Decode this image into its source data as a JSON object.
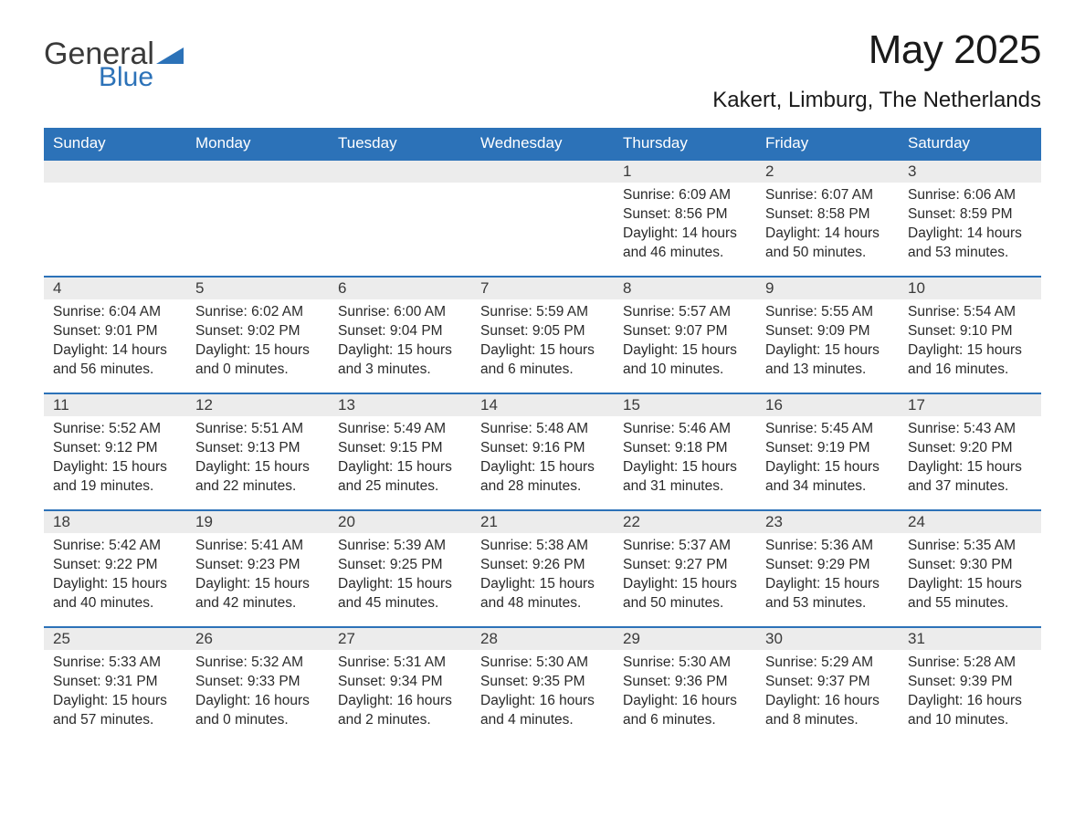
{
  "logo": {
    "general": "General",
    "blue": "Blue",
    "tri_color": "#2c72b8"
  },
  "title": "May 2025",
  "location": "Kakert, Limburg, The Netherlands",
  "colors": {
    "header_bg": "#2c72b8",
    "header_text": "#ffffff",
    "band_bg": "#ececec",
    "band_border": "#2c72b8",
    "text": "#2a2a2a",
    "background": "#ffffff"
  },
  "typography": {
    "title_fontsize": 44,
    "location_fontsize": 24,
    "dow_fontsize": 17,
    "daynum_fontsize": 17,
    "body_fontsize": 15.5
  },
  "dow": [
    "Sunday",
    "Monday",
    "Tuesday",
    "Wednesday",
    "Thursday",
    "Friday",
    "Saturday"
  ],
  "weeks": [
    [
      {
        "empty": true
      },
      {
        "empty": true
      },
      {
        "empty": true
      },
      {
        "empty": true
      },
      {
        "n": "1",
        "sunrise": "Sunrise: 6:09 AM",
        "sunset": "Sunset: 8:56 PM",
        "day1": "Daylight: 14 hours",
        "day2": "and 46 minutes."
      },
      {
        "n": "2",
        "sunrise": "Sunrise: 6:07 AM",
        "sunset": "Sunset: 8:58 PM",
        "day1": "Daylight: 14 hours",
        "day2": "and 50 minutes."
      },
      {
        "n": "3",
        "sunrise": "Sunrise: 6:06 AM",
        "sunset": "Sunset: 8:59 PM",
        "day1": "Daylight: 14 hours",
        "day2": "and 53 minutes."
      }
    ],
    [
      {
        "n": "4",
        "sunrise": "Sunrise: 6:04 AM",
        "sunset": "Sunset: 9:01 PM",
        "day1": "Daylight: 14 hours",
        "day2": "and 56 minutes."
      },
      {
        "n": "5",
        "sunrise": "Sunrise: 6:02 AM",
        "sunset": "Sunset: 9:02 PM",
        "day1": "Daylight: 15 hours",
        "day2": "and 0 minutes."
      },
      {
        "n": "6",
        "sunrise": "Sunrise: 6:00 AM",
        "sunset": "Sunset: 9:04 PM",
        "day1": "Daylight: 15 hours",
        "day2": "and 3 minutes."
      },
      {
        "n": "7",
        "sunrise": "Sunrise: 5:59 AM",
        "sunset": "Sunset: 9:05 PM",
        "day1": "Daylight: 15 hours",
        "day2": "and 6 minutes."
      },
      {
        "n": "8",
        "sunrise": "Sunrise: 5:57 AM",
        "sunset": "Sunset: 9:07 PM",
        "day1": "Daylight: 15 hours",
        "day2": "and 10 minutes."
      },
      {
        "n": "9",
        "sunrise": "Sunrise: 5:55 AM",
        "sunset": "Sunset: 9:09 PM",
        "day1": "Daylight: 15 hours",
        "day2": "and 13 minutes."
      },
      {
        "n": "10",
        "sunrise": "Sunrise: 5:54 AM",
        "sunset": "Sunset: 9:10 PM",
        "day1": "Daylight: 15 hours",
        "day2": "and 16 minutes."
      }
    ],
    [
      {
        "n": "11",
        "sunrise": "Sunrise: 5:52 AM",
        "sunset": "Sunset: 9:12 PM",
        "day1": "Daylight: 15 hours",
        "day2": "and 19 minutes."
      },
      {
        "n": "12",
        "sunrise": "Sunrise: 5:51 AM",
        "sunset": "Sunset: 9:13 PM",
        "day1": "Daylight: 15 hours",
        "day2": "and 22 minutes."
      },
      {
        "n": "13",
        "sunrise": "Sunrise: 5:49 AM",
        "sunset": "Sunset: 9:15 PM",
        "day1": "Daylight: 15 hours",
        "day2": "and 25 minutes."
      },
      {
        "n": "14",
        "sunrise": "Sunrise: 5:48 AM",
        "sunset": "Sunset: 9:16 PM",
        "day1": "Daylight: 15 hours",
        "day2": "and 28 minutes."
      },
      {
        "n": "15",
        "sunrise": "Sunrise: 5:46 AM",
        "sunset": "Sunset: 9:18 PM",
        "day1": "Daylight: 15 hours",
        "day2": "and 31 minutes."
      },
      {
        "n": "16",
        "sunrise": "Sunrise: 5:45 AM",
        "sunset": "Sunset: 9:19 PM",
        "day1": "Daylight: 15 hours",
        "day2": "and 34 minutes."
      },
      {
        "n": "17",
        "sunrise": "Sunrise: 5:43 AM",
        "sunset": "Sunset: 9:20 PM",
        "day1": "Daylight: 15 hours",
        "day2": "and 37 minutes."
      }
    ],
    [
      {
        "n": "18",
        "sunrise": "Sunrise: 5:42 AM",
        "sunset": "Sunset: 9:22 PM",
        "day1": "Daylight: 15 hours",
        "day2": "and 40 minutes."
      },
      {
        "n": "19",
        "sunrise": "Sunrise: 5:41 AM",
        "sunset": "Sunset: 9:23 PM",
        "day1": "Daylight: 15 hours",
        "day2": "and 42 minutes."
      },
      {
        "n": "20",
        "sunrise": "Sunrise: 5:39 AM",
        "sunset": "Sunset: 9:25 PM",
        "day1": "Daylight: 15 hours",
        "day2": "and 45 minutes."
      },
      {
        "n": "21",
        "sunrise": "Sunrise: 5:38 AM",
        "sunset": "Sunset: 9:26 PM",
        "day1": "Daylight: 15 hours",
        "day2": "and 48 minutes."
      },
      {
        "n": "22",
        "sunrise": "Sunrise: 5:37 AM",
        "sunset": "Sunset: 9:27 PM",
        "day1": "Daylight: 15 hours",
        "day2": "and 50 minutes."
      },
      {
        "n": "23",
        "sunrise": "Sunrise: 5:36 AM",
        "sunset": "Sunset: 9:29 PM",
        "day1": "Daylight: 15 hours",
        "day2": "and 53 minutes."
      },
      {
        "n": "24",
        "sunrise": "Sunrise: 5:35 AM",
        "sunset": "Sunset: 9:30 PM",
        "day1": "Daylight: 15 hours",
        "day2": "and 55 minutes."
      }
    ],
    [
      {
        "n": "25",
        "sunrise": "Sunrise: 5:33 AM",
        "sunset": "Sunset: 9:31 PM",
        "day1": "Daylight: 15 hours",
        "day2": "and 57 minutes."
      },
      {
        "n": "26",
        "sunrise": "Sunrise: 5:32 AM",
        "sunset": "Sunset: 9:33 PM",
        "day1": "Daylight: 16 hours",
        "day2": "and 0 minutes."
      },
      {
        "n": "27",
        "sunrise": "Sunrise: 5:31 AM",
        "sunset": "Sunset: 9:34 PM",
        "day1": "Daylight: 16 hours",
        "day2": "and 2 minutes."
      },
      {
        "n": "28",
        "sunrise": "Sunrise: 5:30 AM",
        "sunset": "Sunset: 9:35 PM",
        "day1": "Daylight: 16 hours",
        "day2": "and 4 minutes."
      },
      {
        "n": "29",
        "sunrise": "Sunrise: 5:30 AM",
        "sunset": "Sunset: 9:36 PM",
        "day1": "Daylight: 16 hours",
        "day2": "and 6 minutes."
      },
      {
        "n": "30",
        "sunrise": "Sunrise: 5:29 AM",
        "sunset": "Sunset: 9:37 PM",
        "day1": "Daylight: 16 hours",
        "day2": "and 8 minutes."
      },
      {
        "n": "31",
        "sunrise": "Sunrise: 5:28 AM",
        "sunset": "Sunset: 9:39 PM",
        "day1": "Daylight: 16 hours",
        "day2": "and 10 minutes."
      }
    ]
  ]
}
